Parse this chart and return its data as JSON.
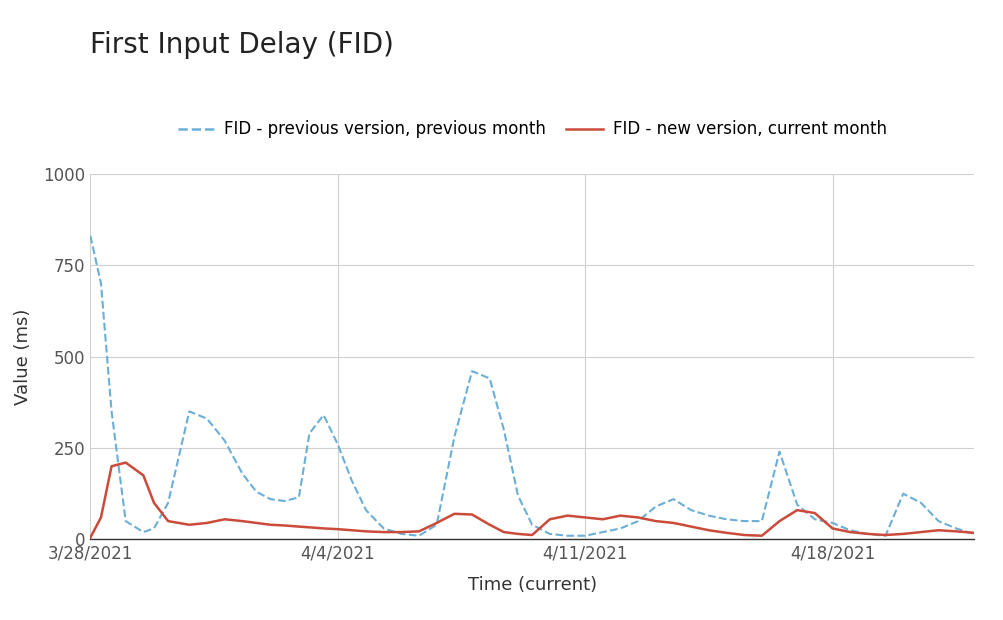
{
  "title": "First Input Delay (FID)",
  "xlabel": "Time (current)",
  "ylabel": "Value (ms)",
  "ylim": [
    0,
    1000
  ],
  "yticks": [
    0,
    250,
    500,
    750,
    1000
  ],
  "legend_labels": [
    "FID - previous version, previous month",
    "FID - new version, current month"
  ],
  "prev_color": "#6baed6",
  "new_color": "#cb4b3a",
  "background_color": "#ffffff",
  "grid_color": "#d0d0d0",
  "title_fontsize": 20,
  "axis_label_fontsize": 13,
  "tick_fontsize": 12,
  "legend_fontsize": 12,
  "prev_x_days": [
    0,
    0.3,
    0.6,
    1.0,
    1.5,
    1.8,
    2.2,
    2.8,
    3.3,
    3.8,
    4.3,
    4.7,
    5.1,
    5.5,
    5.9,
    6.2,
    6.6,
    7.0,
    7.4,
    7.8,
    8.3,
    8.8,
    9.3,
    9.8,
    10.3,
    10.8,
    11.3,
    11.7,
    12.1,
    12.5,
    13.0,
    13.5,
    14.0,
    14.5,
    15.0,
    15.5,
    16.0,
    16.5,
    17.0,
    17.5,
    18.0,
    18.5,
    19.0,
    19.5,
    20.0,
    20.5,
    21.0,
    21.5,
    22.0,
    22.5,
    23.0,
    23.5,
    24.0,
    24.5,
    25.0
  ],
  "prev_y": [
    830,
    700,
    350,
    50,
    20,
    30,
    100,
    350,
    330,
    270,
    180,
    130,
    110,
    105,
    115,
    290,
    340,
    260,
    160,
    80,
    30,
    15,
    10,
    40,
    280,
    460,
    440,
    300,
    120,
    40,
    15,
    10,
    10,
    20,
    30,
    50,
    90,
    110,
    80,
    65,
    55,
    50,
    50,
    240,
    95,
    55,
    45,
    25,
    15,
    10,
    125,
    100,
    50,
    30,
    15
  ],
  "new_x_days": [
    0,
    0.3,
    0.6,
    1.0,
    1.5,
    1.8,
    2.2,
    2.8,
    3.3,
    3.8,
    4.3,
    4.7,
    5.1,
    5.5,
    5.9,
    6.2,
    6.6,
    7.0,
    7.4,
    7.8,
    8.3,
    8.8,
    9.3,
    9.8,
    10.3,
    10.8,
    11.3,
    11.7,
    12.1,
    12.5,
    13.0,
    13.5,
    14.0,
    14.5,
    15.0,
    15.5,
    16.0,
    16.5,
    17.0,
    17.5,
    18.0,
    18.5,
    19.0,
    19.5,
    20.0,
    20.5,
    21.0,
    21.5,
    22.0,
    22.5,
    23.0,
    23.5,
    24.0,
    24.5,
    25.0
  ],
  "new_y": [
    5,
    60,
    200,
    210,
    175,
    100,
    50,
    40,
    45,
    55,
    50,
    45,
    40,
    38,
    35,
    33,
    30,
    28,
    25,
    22,
    20,
    20,
    22,
    45,
    70,
    68,
    40,
    20,
    15,
    12,
    55,
    65,
    60,
    55,
    65,
    60,
    50,
    45,
    35,
    25,
    18,
    12,
    10,
    50,
    80,
    72,
    30,
    20,
    15,
    12,
    15,
    20,
    25,
    22,
    18
  ],
  "xtick_positions_days": [
    0,
    7,
    14,
    21
  ],
  "xtick_labels": [
    "3/28/2021",
    "4/4/2021",
    "4/11/2021",
    "4/18/2021"
  ]
}
